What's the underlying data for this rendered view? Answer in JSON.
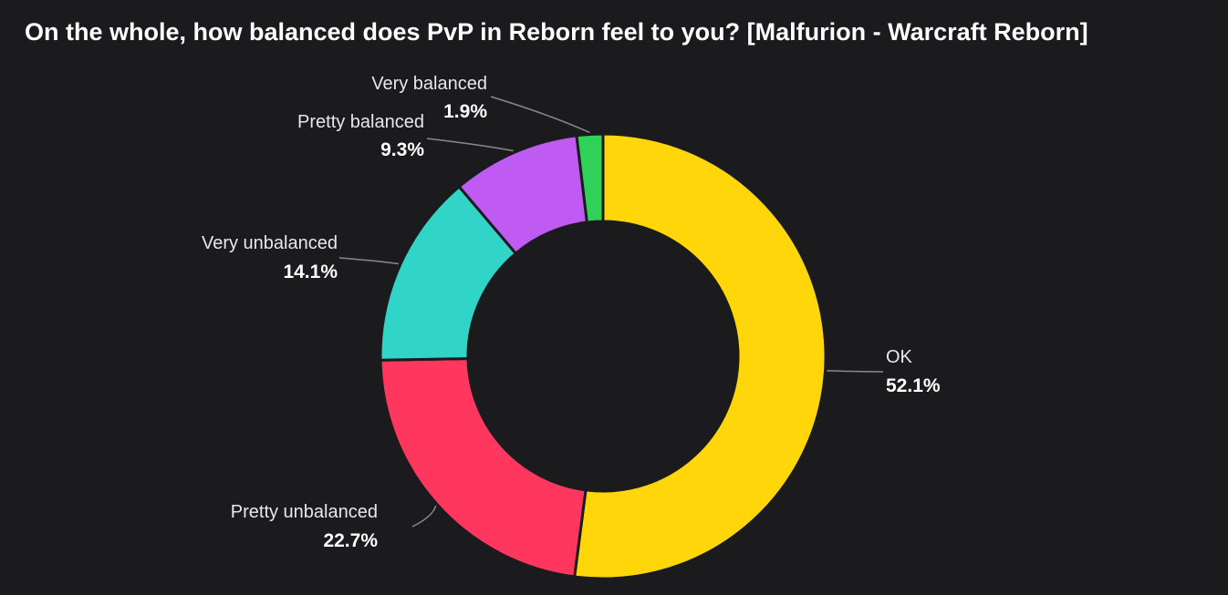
{
  "chart_data": {
    "type": "pie",
    "variant": "donut",
    "title": "On the whole, how balanced does PvP in Reborn feel to you? [Malfurion - Warcraft Reborn]",
    "background": "#1b1b1d",
    "start_angle_deg": 0,
    "direction": "clockwise",
    "slices": [
      {
        "label": "OK",
        "value": 52.1,
        "value_label": "52.1%",
        "color": "#ffd60a"
      },
      {
        "label": "Pretty unbalanced",
        "value": 22.7,
        "value_label": "22.7%",
        "color": "#ff375f"
      },
      {
        "label": "Very unbalanced",
        "value": 14.1,
        "value_label": "14.1%",
        "color": "#30d5c8"
      },
      {
        "label": "Pretty balanced",
        "value": 9.3,
        "value_label": "9.3%",
        "color": "#bf5af2"
      },
      {
        "label": "Very balanced",
        "value": 1.9,
        "value_label": "1.9%",
        "color": "#30d158"
      }
    ]
  }
}
